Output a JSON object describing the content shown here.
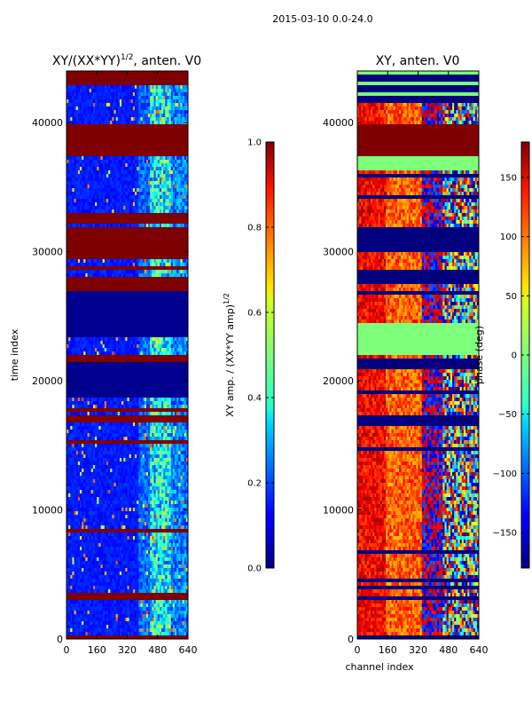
{
  "suptitle": "2015-03-10 0.0-24.0",
  "chart_data": [
    {
      "type": "heatmap",
      "title_main": "XY/(XX*YY)",
      "title_exp": "1/2",
      "title_tail": ", anten. V0",
      "ylabel": "time index",
      "xlabel": "",
      "x_ticks": [
        0,
        160,
        320,
        480,
        640
      ],
      "x_tick_labels": [
        "0",
        "160",
        "320",
        "480",
        "640"
      ],
      "xlim": [
        0,
        640
      ],
      "y_ticks": [
        0,
        10000,
        20000,
        30000,
        40000
      ],
      "y_tick_labels": [
        "0",
        "10000",
        "20000",
        "30000",
        "40000"
      ],
      "ylim": [
        0,
        44000
      ],
      "colorbar": {
        "label_main": "XY amp. / (XX*YY amp)",
        "label_exp": "1/2",
        "range": [
          0.0,
          1.0
        ],
        "ticks": [
          0.0,
          0.2,
          0.4,
          0.6,
          0.8,
          1.0
        ],
        "tick_labels": [
          "0.0",
          "0.2",
          "0.4",
          "0.6",
          "0.8",
          "1.0"
        ]
      }
    },
    {
      "type": "heatmap",
      "title_main": "XY, anten. V0",
      "title_exp": "",
      "title_tail": "",
      "ylabel": "",
      "xlabel": "channel index",
      "x_ticks": [
        0,
        160,
        320,
        480,
        640
      ],
      "x_tick_labels": [
        "0",
        "160",
        "320",
        "480",
        "640"
      ],
      "xlim": [
        0,
        640
      ],
      "y_ticks": [
        0,
        10000,
        20000,
        30000,
        40000
      ],
      "y_tick_labels": [
        "0",
        "10000",
        "20000",
        "30000",
        "40000"
      ],
      "ylim": [
        0,
        44000
      ],
      "colorbar": {
        "label_main": "phase (deg)",
        "label_exp": "",
        "range": [
          -180,
          180
        ],
        "ticks": [
          -150,
          -100,
          -50,
          0,
          50,
          100,
          150
        ],
        "tick_labels": [
          "−150",
          "−100",
          "−50",
          "0",
          "50",
          "100",
          "150"
        ]
      }
    }
  ]
}
